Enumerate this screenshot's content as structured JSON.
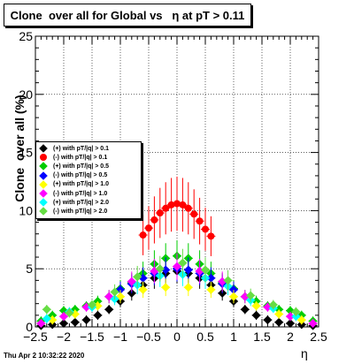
{
  "title": "Clone  over all for Global vs   η at pT > 0.11",
  "ylabel": "Clone  over all (%)",
  "xlabel": "η",
  "timestamp": "Thu Apr  2 10:32:22 2020",
  "chart_data": {
    "type": "scatter",
    "xlim": [
      -2.5,
      2.5
    ],
    "ylim": [
      0,
      25
    ],
    "x_ticks": [
      "−2.5",
      "−2",
      "−1.5",
      "−1",
      "−0.5",
      "0",
      "0.5",
      "1",
      "1.5",
      "2",
      "2.5"
    ],
    "x_tick_values": [
      -2.5,
      -2,
      -1.5,
      -1,
      -0.5,
      0,
      0.5,
      1,
      1.5,
      2,
      2.5
    ],
    "y_ticks": [
      "0",
      "5",
      "10",
      "15",
      "20",
      "25"
    ],
    "y_tick_values": [
      0,
      5,
      10,
      15,
      20,
      25
    ],
    "grid": true,
    "legend_position": "left",
    "series": [
      {
        "name": "(+) with pT/|q| > 0.1",
        "color": "#000000",
        "marker": "diamond",
        "x": [
          -2.4,
          -2.2,
          -2.0,
          -1.8,
          -1.6,
          -1.4,
          -1.2,
          -1.0,
          -0.8,
          -0.6,
          -0.4,
          -0.2,
          0.0,
          0.2,
          0.4,
          0.6,
          0.8,
          1.0,
          1.2,
          1.4,
          1.6,
          1.8,
          2.0,
          2.2,
          2.4
        ],
        "y": [
          0.1,
          0.2,
          0.3,
          0.4,
          0.6,
          1.0,
          1.5,
          2.2,
          2.9,
          3.6,
          4.2,
          4.6,
          4.8,
          4.6,
          4.2,
          3.6,
          2.9,
          2.2,
          1.5,
          1.0,
          0.6,
          0.4,
          0.3,
          0.2,
          0.1
        ]
      },
      {
        "name": "(-) with pT/|q| > 0.1",
        "color": "#ff0000",
        "marker": "circle",
        "x": [
          -0.6,
          -0.5,
          -0.4,
          -0.3,
          -0.2,
          -0.1,
          0.0,
          0.1,
          0.2,
          0.3,
          0.4,
          0.5,
          0.6
        ],
        "y": [
          7.9,
          8.5,
          9.2,
          9.8,
          10.2,
          10.5,
          10.6,
          10.5,
          10.2,
          9.7,
          9.1,
          8.4,
          7.8
        ]
      },
      {
        "name": "(+) with pT/|q| > 0.5",
        "color": "#00cc00",
        "marker": "diamond",
        "x": [
          -2.4,
          -2.2,
          -2.0,
          -1.8,
          -1.6,
          -1.4,
          -1.2,
          -1.0,
          -0.8,
          -0.6,
          -0.4,
          -0.2,
          0.0,
          0.2,
          0.4,
          0.6,
          0.8,
          1.0,
          1.2,
          1.4,
          1.6,
          1.8,
          2.0,
          2.2,
          2.4
        ],
        "y": [
          0.5,
          1.0,
          1.4,
          1.5,
          1.8,
          2.2,
          2.6,
          3.3,
          3.8,
          4.6,
          5.4,
          5.9,
          6.1,
          5.9,
          5.4,
          4.6,
          3.8,
          3.3,
          2.6,
          2.2,
          1.8,
          1.5,
          1.4,
          1.0,
          0.5
        ]
      },
      {
        "name": "(-) with pT/|q| > 0.5",
        "color": "#0000ff",
        "marker": "diamond",
        "x": [
          -1.0,
          -0.8,
          -0.6,
          -0.4,
          -0.2,
          0.0,
          0.2,
          0.4,
          0.6,
          0.8,
          1.0
        ],
        "y": [
          3.2,
          3.7,
          4.2,
          4.6,
          4.9,
          5.0,
          4.9,
          4.6,
          4.2,
          3.7,
          3.2
        ]
      },
      {
        "name": "(+) with pT/|q| > 1.0",
        "color": "#ffff00",
        "marker": "diamond",
        "x": [
          -2.2,
          -1.8,
          -1.4,
          -1.0,
          -0.6,
          -0.2,
          0.2,
          0.6,
          1.0,
          1.4,
          1.8,
          2.2
        ],
        "y": [
          0.6,
          1.1,
          1.8,
          2.6,
          3.2,
          3.4,
          3.4,
          3.2,
          2.6,
          1.8,
          1.1,
          0.6
        ]
      },
      {
        "name": "(-) with pT/|q| > 1.0",
        "color": "#ff00ff",
        "marker": "diamond",
        "x": [
          -2.4,
          -2.0,
          -1.6,
          -1.2,
          -0.8,
          -0.4,
          0.0,
          0.4,
          0.8,
          1.2,
          1.6,
          2.0,
          2.4
        ],
        "y": [
          0.3,
          0.9,
          1.7,
          2.6,
          3.9,
          4.8,
          5.2,
          4.8,
          3.9,
          2.6,
          1.7,
          0.9,
          0.3
        ]
      },
      {
        "name": "(+) with pT/|q| > 2.0",
        "color": "#00ffff",
        "marker": "diamond",
        "x": [
          -2.3,
          -1.9,
          -1.5,
          -1.1,
          -0.7,
          -0.3,
          0.1,
          0.5,
          0.9,
          1.3,
          1.7,
          2.1
        ],
        "y": [
          0.7,
          1.3,
          1.7,
          2.4,
          3.6,
          4.4,
          4.5,
          4.2,
          3.5,
          2.3,
          1.6,
          0.9
        ]
      },
      {
        "name": "(-) with pT/|q| > 2.0",
        "color": "#66dd44",
        "marker": "diamond",
        "x": [
          -2.3,
          -1.9,
          -1.5,
          -1.1,
          -0.7,
          -0.3,
          0.1,
          0.5,
          0.9,
          1.3,
          1.7,
          2.1
        ],
        "y": [
          1.5,
          1.2,
          1.9,
          3.0,
          4.3,
          5.0,
          5.5,
          4.9,
          4.0,
          2.7,
          1.9,
          1.3
        ]
      }
    ]
  }
}
